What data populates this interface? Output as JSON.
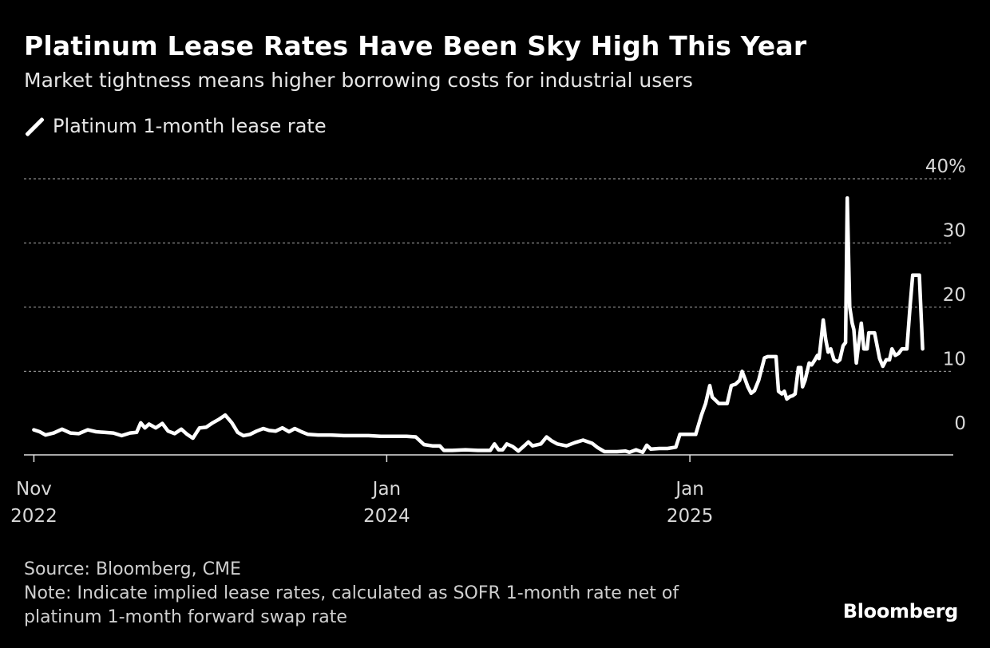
{
  "header": {
    "title": "Platinum Lease Rates Have Been Sky High This Year",
    "subtitle": "Market tightness means higher borrowing costs for industrial users"
  },
  "legend": {
    "label": "Platinum 1-month lease rate"
  },
  "footer": {
    "source": "Source: Bloomberg, CME",
    "note_line1": "Note: Indicate implied lease rates, calculated as SOFR 1-month rate net of",
    "note_line2": "platinum 1-month forward swap rate"
  },
  "brand": "Bloomberg",
  "colors": {
    "background": "#000000",
    "line": "#ffffff",
    "grid": "#8a8a8a"
  },
  "chart_data": {
    "type": "line",
    "title": "Platinum Lease Rates Have Been Sky High This Year",
    "subtitle": "Market tightness means higher borrowing costs for industrial users",
    "xlabel": "",
    "ylabel": "",
    "ylim": [
      -3,
      40
    ],
    "xlim": [
      "2022-10-20",
      "2025-11-15"
    ],
    "y_ticks": [
      {
        "value": 40,
        "label": "40%"
      },
      {
        "value": 30,
        "label": "30"
      },
      {
        "value": 20,
        "label": "20"
      },
      {
        "value": 10,
        "label": "10"
      },
      {
        "value": 0,
        "label": "0"
      }
    ],
    "x_ticks": [
      {
        "date": "2022-11-01",
        "line1": "Nov",
        "line2": "2022"
      },
      {
        "date": "2024-01-01",
        "line1": "Jan",
        "line2": "2024"
      },
      {
        "date": "2025-01-01",
        "line1": "Jan",
        "line2": "2025"
      }
    ],
    "grid": true,
    "legend_position": "top-left",
    "series": [
      {
        "name": "Platinum 1-month lease rate",
        "points": [
          [
            "2022-11-01",
            0.9
          ],
          [
            "2022-11-08",
            0.6
          ],
          [
            "2022-11-15",
            0.1
          ],
          [
            "2022-11-25",
            0.4
          ],
          [
            "2022-12-05",
            1.0
          ],
          [
            "2022-12-15",
            0.4
          ],
          [
            "2022-12-25",
            0.3
          ],
          [
            "2023-01-05",
            0.9
          ],
          [
            "2023-01-15",
            0.6
          ],
          [
            "2023-01-25",
            0.5
          ],
          [
            "2023-02-05",
            0.4
          ],
          [
            "2023-02-15",
            0.0
          ],
          [
            "2023-02-25",
            0.4
          ],
          [
            "2023-03-05",
            0.5
          ],
          [
            "2023-03-10",
            2.0
          ],
          [
            "2023-03-15",
            1.2
          ],
          [
            "2023-03-20",
            1.8
          ],
          [
            "2023-03-28",
            1.2
          ],
          [
            "2023-04-05",
            1.9
          ],
          [
            "2023-04-12",
            0.7
          ],
          [
            "2023-04-20",
            0.3
          ],
          [
            "2023-04-28",
            1.0
          ],
          [
            "2023-05-05",
            0.2
          ],
          [
            "2023-05-12",
            -0.4
          ],
          [
            "2023-05-20",
            1.2
          ],
          [
            "2023-05-28",
            1.3
          ],
          [
            "2023-06-05",
            2.0
          ],
          [
            "2023-06-12",
            2.5
          ],
          [
            "2023-06-20",
            3.2
          ],
          [
            "2023-06-28",
            2.0
          ],
          [
            "2023-07-05",
            0.5
          ],
          [
            "2023-07-12",
            0.0
          ],
          [
            "2023-07-20",
            0.2
          ],
          [
            "2023-07-28",
            0.7
          ],
          [
            "2023-08-05",
            1.1
          ],
          [
            "2023-08-12",
            0.8
          ],
          [
            "2023-08-20",
            0.7
          ],
          [
            "2023-08-28",
            1.2
          ],
          [
            "2023-09-05",
            0.6
          ],
          [
            "2023-09-12",
            1.1
          ],
          [
            "2023-09-20",
            0.6
          ],
          [
            "2023-09-28",
            0.2
          ],
          [
            "2023-10-10",
            0.1
          ],
          [
            "2023-10-25",
            0.1
          ],
          [
            "2023-11-10",
            0.0
          ],
          [
            "2023-11-25",
            0.0
          ],
          [
            "2023-12-10",
            0.0
          ],
          [
            "2023-12-25",
            -0.1
          ],
          [
            "2024-01-10",
            -0.1
          ],
          [
            "2024-01-25",
            -0.1
          ],
          [
            "2024-02-05",
            -0.2
          ],
          [
            "2024-02-15",
            -1.4
          ],
          [
            "2024-02-25",
            -1.6
          ],
          [
            "2024-03-05",
            -1.6
          ],
          [
            "2024-03-10",
            -2.3
          ],
          [
            "2024-03-20",
            -2.3
          ],
          [
            "2024-04-05",
            -2.2
          ],
          [
            "2024-04-20",
            -2.3
          ],
          [
            "2024-05-05",
            -2.3
          ],
          [
            "2024-05-10",
            -1.3
          ],
          [
            "2024-05-15",
            -2.2
          ],
          [
            "2024-05-20",
            -2.2
          ],
          [
            "2024-05-25",
            -1.3
          ],
          [
            "2024-06-01",
            -1.7
          ],
          [
            "2024-06-08",
            -2.4
          ],
          [
            "2024-06-15",
            -1.6
          ],
          [
            "2024-06-20",
            -1.0
          ],
          [
            "2024-06-25",
            -1.6
          ],
          [
            "2024-07-05",
            -1.3
          ],
          [
            "2024-07-12",
            -0.2
          ],
          [
            "2024-07-18",
            -0.8
          ],
          [
            "2024-07-25",
            -1.3
          ],
          [
            "2024-08-05",
            -1.6
          ],
          [
            "2024-08-15",
            -1.1
          ],
          [
            "2024-08-25",
            -0.7
          ],
          [
            "2024-09-05",
            -1.2
          ],
          [
            "2024-09-12",
            -1.9
          ],
          [
            "2024-09-20",
            -2.5
          ],
          [
            "2024-10-05",
            -2.5
          ],
          [
            "2024-10-15",
            -2.4
          ],
          [
            "2024-10-20",
            -2.6
          ],
          [
            "2024-10-28",
            -2.2
          ],
          [
            "2024-11-05",
            -2.6
          ],
          [
            "2024-11-10",
            -1.5
          ],
          [
            "2024-11-15",
            -2.1
          ],
          [
            "2024-11-25",
            -2.0
          ],
          [
            "2024-12-05",
            -2.0
          ],
          [
            "2024-12-15",
            -1.8
          ],
          [
            "2024-12-20",
            0.2
          ],
          [
            "2024-12-28",
            0.2
          ],
          [
            "2025-01-08",
            0.2
          ],
          [
            "2025-01-15",
            3.2
          ],
          [
            "2025-01-20",
            5.0
          ],
          [
            "2025-01-25",
            7.8
          ],
          [
            "2025-01-28",
            6.0
          ],
          [
            "2025-02-01",
            5.5
          ],
          [
            "2025-02-05",
            5.0
          ],
          [
            "2025-02-10",
            5.0
          ],
          [
            "2025-02-15",
            5.0
          ],
          [
            "2025-02-20",
            7.8
          ],
          [
            "2025-02-25",
            8.0
          ],
          [
            "2025-03-02",
            8.6
          ],
          [
            "2025-03-05",
            10.0
          ],
          [
            "2025-03-08",
            9.0
          ],
          [
            "2025-03-12",
            7.6
          ],
          [
            "2025-03-16",
            6.6
          ],
          [
            "2025-03-20",
            7.0
          ],
          [
            "2025-03-25",
            8.6
          ],
          [
            "2025-04-01",
            12.1
          ],
          [
            "2025-04-05",
            12.3
          ],
          [
            "2025-04-15",
            12.3
          ],
          [
            "2025-04-18",
            6.9
          ],
          [
            "2025-04-22",
            6.5
          ],
          [
            "2025-04-25",
            6.9
          ],
          [
            "2025-04-28",
            5.7
          ],
          [
            "2025-05-02",
            6.1
          ],
          [
            "2025-05-05",
            6.2
          ],
          [
            "2025-05-08",
            6.5
          ],
          [
            "2025-05-12",
            10.6
          ],
          [
            "2025-05-15",
            10.6
          ],
          [
            "2025-05-17",
            7.6
          ],
          [
            "2025-05-20",
            8.6
          ],
          [
            "2025-05-25",
            11.3
          ],
          [
            "2025-05-28",
            11.0
          ],
          [
            "2025-06-01",
            11.8
          ],
          [
            "2025-06-04",
            12.5
          ],
          [
            "2025-06-06",
            12.0
          ],
          [
            "2025-06-09",
            15.5
          ],
          [
            "2025-06-11",
            18.0
          ],
          [
            "2025-06-14",
            15.0
          ],
          [
            "2025-06-17",
            13.0
          ],
          [
            "2025-06-20",
            13.5
          ],
          [
            "2025-06-24",
            11.8
          ],
          [
            "2025-06-28",
            11.5
          ],
          [
            "2025-07-01",
            11.8
          ],
          [
            "2025-07-05",
            14.0
          ],
          [
            "2025-07-08",
            14.5
          ],
          [
            "2025-07-10",
            37.0
          ],
          [
            "2025-07-13",
            20.0
          ],
          [
            "2025-07-16",
            17.5
          ],
          [
            "2025-07-18",
            16.5
          ],
          [
            "2025-07-21",
            11.3
          ],
          [
            "2025-07-24",
            14.5
          ],
          [
            "2025-07-27",
            17.5
          ],
          [
            "2025-07-30",
            13.5
          ],
          [
            "2025-08-03",
            13.5
          ],
          [
            "2025-08-05",
            16.0
          ],
          [
            "2025-08-12",
            16.0
          ],
          [
            "2025-08-18",
            12.0
          ],
          [
            "2025-08-22",
            10.8
          ],
          [
            "2025-08-26",
            11.8
          ],
          [
            "2025-08-30",
            11.8
          ],
          [
            "2025-09-02",
            13.5
          ],
          [
            "2025-09-06",
            12.5
          ],
          [
            "2025-09-10",
            12.8
          ],
          [
            "2025-09-14",
            13.5
          ],
          [
            "2025-09-20",
            13.5
          ],
          [
            "2025-09-24",
            20.5
          ],
          [
            "2025-09-27",
            25.0
          ],
          [
            "2025-10-05",
            25.0
          ],
          [
            "2025-10-09",
            13.5
          ]
        ]
      }
    ]
  }
}
